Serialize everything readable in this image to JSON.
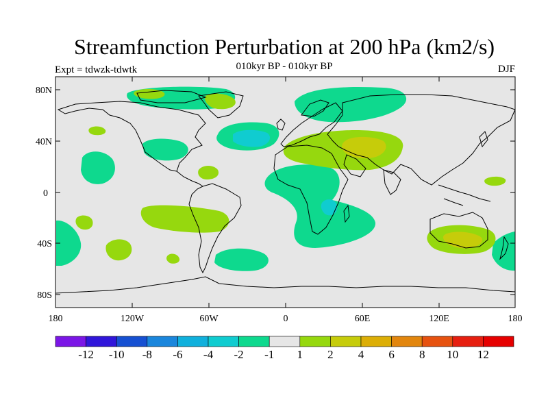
{
  "title": "Streamfunction Perturbation at 200 hPa (km2/s)",
  "subtitle": "010kyr BP - 010kyr BP",
  "left_label": "Expt = tdwzk-tdwtk",
  "right_label": "DJF",
  "axes": {
    "y_ticks": [
      "80N",
      "40N",
      "0",
      "40S",
      "80S"
    ],
    "x_ticks": [
      "180",
      "120W",
      "60W",
      "0",
      "60E",
      "120E",
      "180"
    ]
  },
  "colorbar": {
    "labels": [
      "-12",
      "-10",
      "-8",
      "-6",
      "-4",
      "-2",
      "-1",
      "1",
      "2",
      "4",
      "6",
      "8",
      "10",
      "12"
    ],
    "colors": [
      "#7b16e6",
      "#3016da",
      "#1650d2",
      "#1a86dc",
      "#10b0dc",
      "#10ccd0",
      "#0ed98e",
      "#e6e6e6",
      "#96d80e",
      "#c6cc0a",
      "#dcae06",
      "#e2860e",
      "#e65210",
      "#e61f10",
      "#e60000"
    ]
  },
  "colors": {
    "background": "#e6e6e6",
    "neg1": "#0ed98e",
    "neg2": "#10ccd0",
    "pos1": "#96d80e",
    "pos2": "#c6cc0a"
  }
}
